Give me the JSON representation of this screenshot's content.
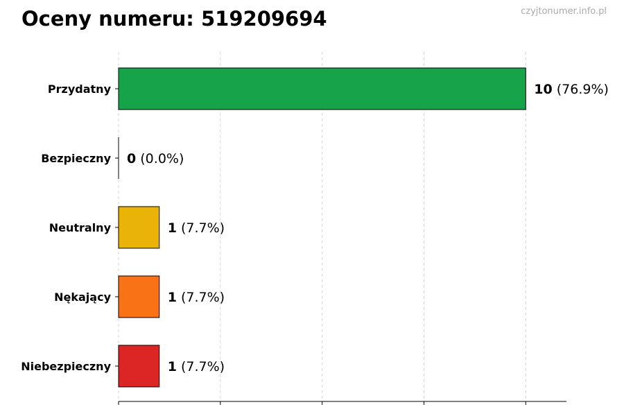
{
  "watermark": "czyjtonumer.info.pl",
  "chart_data": {
    "type": "bar",
    "orientation": "horizontal",
    "title": "Oceny numeru: 519209694",
    "categories": [
      "Przydatny",
      "Bezpieczny",
      "Neutralny",
      "Nękający",
      "Niebezpieczny"
    ],
    "values": [
      10,
      0,
      1,
      1,
      1
    ],
    "value_labels": [
      "(76.9%)",
      "(0.0%)",
      "(7.7%)",
      "(7.7%)",
      "(7.7%)"
    ],
    "colors": [
      "#16a34a",
      "#16a34a",
      "#eab308",
      "#f97316",
      "#dc2626"
    ],
    "xlim": [
      0,
      11
    ],
    "x_ticks": [
      0,
      2.5,
      5,
      7.5,
      10
    ],
    "grid": "vertical-dashed",
    "xlabel": "",
    "ylabel": ""
  }
}
